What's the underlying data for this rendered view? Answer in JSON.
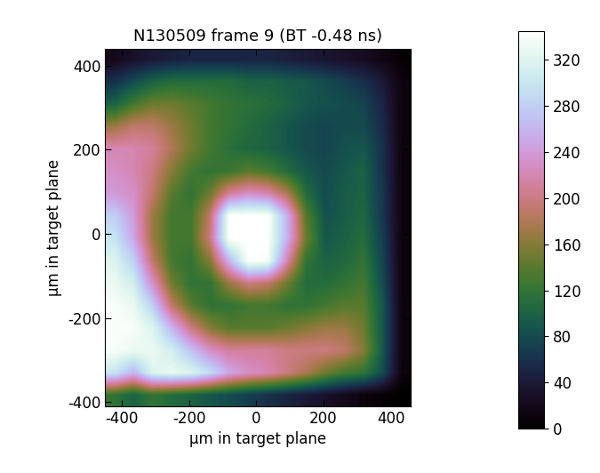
{
  "chart_data": {
    "type": "heatmap",
    "title": "N130509 frame 9 (BT -0.48 ns)",
    "x_label": "µm in target plane",
    "y_label": "µm in target plane",
    "xlim": [
      -450,
      460
    ],
    "ylim": [
      -410,
      440
    ],
    "xticks": [
      -400,
      -200,
      0,
      200,
      400
    ],
    "yticks": [
      -400,
      -200,
      0,
      200,
      400
    ],
    "color": "cubehelix",
    "colorbar_range": [
      0,
      345
    ],
    "colorbar_ticks": [
      0,
      40,
      80,
      120,
      160,
      200,
      240,
      280,
      320
    ],
    "cells": [
      [
        20,
        30,
        40,
        45,
        50,
        50,
        50,
        50,
        50,
        45,
        40,
        35,
        30,
        25,
        15,
        5
      ],
      [
        60,
        80,
        100,
        110,
        110,
        110,
        110,
        100,
        100,
        95,
        90,
        80,
        70,
        60,
        40,
        10
      ],
      [
        100,
        130,
        150,
        150,
        140,
        130,
        120,
        115,
        110,
        100,
        90,
        85,
        80,
        75,
        50,
        10
      ],
      [
        170,
        190,
        190,
        170,
        150,
        130,
        120,
        110,
        100,
        90,
        80,
        75,
        80,
        80,
        55,
        10
      ],
      [
        220,
        220,
        210,
        180,
        150,
        130,
        115,
        105,
        100,
        90,
        80,
        75,
        85,
        90,
        60,
        10
      ],
      [
        230,
        220,
        200,
        160,
        130,
        120,
        125,
        140,
        130,
        110,
        90,
        80,
        90,
        100,
        60,
        10
      ],
      [
        240,
        230,
        190,
        140,
        120,
        150,
        210,
        230,
        220,
        180,
        110,
        80,
        95,
        100,
        65,
        10
      ],
      [
        280,
        240,
        170,
        130,
        130,
        190,
        345,
        345,
        345,
        260,
        140,
        85,
        95,
        105,
        65,
        10
      ],
      [
        300,
        250,
        170,
        130,
        130,
        200,
        345,
        345,
        345,
        260,
        150,
        90,
        100,
        110,
        70,
        10
      ],
      [
        320,
        280,
        190,
        130,
        120,
        160,
        260,
        345,
        340,
        220,
        120,
        100,
        105,
        120,
        75,
        10
      ],
      [
        330,
        310,
        230,
        150,
        120,
        120,
        170,
        200,
        190,
        150,
        110,
        110,
        120,
        130,
        80,
        10
      ],
      [
        340,
        330,
        280,
        190,
        140,
        120,
        120,
        130,
        130,
        120,
        120,
        130,
        140,
        140,
        90,
        10
      ],
      [
        340,
        340,
        320,
        260,
        200,
        160,
        140,
        140,
        140,
        150,
        160,
        170,
        170,
        150,
        90,
        10
      ],
      [
        340,
        330,
        330,
        310,
        270,
        230,
        210,
        210,
        210,
        200,
        200,
        200,
        190,
        160,
        90,
        10
      ],
      [
        300,
        260,
        320,
        330,
        320,
        290,
        250,
        230,
        220,
        200,
        180,
        150,
        130,
        120,
        80,
        10
      ],
      [
        120,
        100,
        120,
        110,
        100,
        90,
        80,
        70,
        60,
        50,
        40,
        30,
        20,
        10,
        5,
        0
      ]
    ]
  }
}
